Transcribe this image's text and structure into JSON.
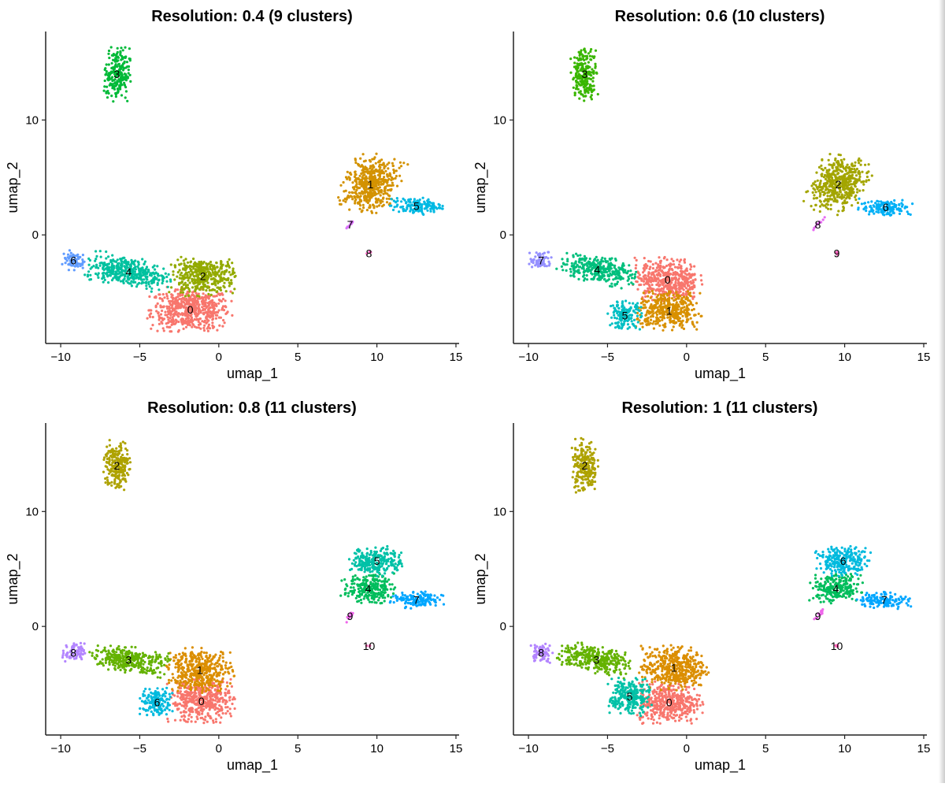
{
  "chart_data": [
    {
      "type": "scatter",
      "title": "Resolution: 0.4 (9 clusters)",
      "xlabel": "umap_1",
      "ylabel": "umap_2",
      "xlim": [
        -10.95,
        15.2
      ],
      "ylim": [
        -9.45,
        17.7
      ],
      "xticks": [
        -10,
        -5,
        0,
        5,
        10,
        15
      ],
      "yticks": [
        0,
        10
      ],
      "grid": false,
      "legend": "none",
      "clusters": [
        {
          "id": "0",
          "color": "#F8766D",
          "cx": -1.8,
          "cy": -6.5,
          "sx": 1.25,
          "sy": 0.9,
          "angle": 0
        },
        {
          "id": "1",
          "color": "#D39200",
          "cx": 9.6,
          "cy": 4.4,
          "sx": 0.8,
          "sy": 1.2,
          "angle": -20
        },
        {
          "id": "2",
          "color": "#93AA00",
          "cx": -1.0,
          "cy": -3.6,
          "sx": 1.0,
          "sy": 0.8,
          "angle": 0
        },
        {
          "id": "3",
          "color": "#00BA38",
          "cx": -6.45,
          "cy": 14.0,
          "sx": 0.4,
          "sy": 1.1,
          "angle": 0
        },
        {
          "id": "4",
          "color": "#00C19F",
          "cx": -5.7,
          "cy": -3.2,
          "sx": 1.3,
          "sy": 0.6,
          "angle": -15
        },
        {
          "id": "5",
          "color": "#00B9E3",
          "cx": 12.5,
          "cy": 2.5,
          "sx": 0.8,
          "sy": 0.35,
          "angle": 0
        },
        {
          "id": "6",
          "color": "#619CFF",
          "cx": -9.2,
          "cy": -2.2,
          "sx": 0.35,
          "sy": 0.4,
          "angle": 0
        },
        {
          "id": "7",
          "color": "#DB72FB",
          "cx": 8.3,
          "cy": 0.9,
          "sx": 0.35,
          "sy": 0.06,
          "angle": 60
        },
        {
          "id": "8",
          "color": "#FF61C3",
          "cx": 9.5,
          "cy": -1.6,
          "sx": 0.08,
          "sy": 0.08,
          "angle": 0
        }
      ]
    },
    {
      "type": "scatter",
      "title": "Resolution: 0.6 (10 clusters)",
      "xlabel": "umap_1",
      "ylabel": "umap_2",
      "xlim": [
        -10.95,
        15.2
      ],
      "ylim": [
        -9.45,
        17.7
      ],
      "xticks": [
        -10,
        -5,
        0,
        5,
        10,
        15
      ],
      "yticks": [
        0,
        10
      ],
      "grid": false,
      "legend": "none",
      "clusters": [
        {
          "id": "0",
          "color": "#F8766D",
          "cx": -1.2,
          "cy": -3.9,
          "sx": 1.0,
          "sy": 0.9,
          "angle": 0
        },
        {
          "id": "1",
          "color": "#D89000",
          "cx": -1.1,
          "cy": -6.6,
          "sx": 1.0,
          "sy": 0.8,
          "angle": 0
        },
        {
          "id": "2",
          "color": "#A3A500",
          "cx": 9.6,
          "cy": 4.4,
          "sx": 0.8,
          "sy": 1.2,
          "angle": -20
        },
        {
          "id": "3",
          "color": "#39B600",
          "cx": -6.45,
          "cy": 14.0,
          "sx": 0.4,
          "sy": 1.1,
          "angle": 0
        },
        {
          "id": "4",
          "color": "#00BF7D",
          "cx": -5.65,
          "cy": -3.0,
          "sx": 1.2,
          "sy": 0.55,
          "angle": -15
        },
        {
          "id": "5",
          "color": "#00BFC4",
          "cx": -3.9,
          "cy": -7.0,
          "sx": 0.5,
          "sy": 0.6,
          "angle": 0
        },
        {
          "id": "6",
          "color": "#00B0F6",
          "cx": 12.6,
          "cy": 2.4,
          "sx": 0.8,
          "sy": 0.35,
          "angle": 0
        },
        {
          "id": "7",
          "color": "#9590FF",
          "cx": -9.2,
          "cy": -2.2,
          "sx": 0.35,
          "sy": 0.4,
          "angle": 0
        },
        {
          "id": "8",
          "color": "#E76BF3",
          "cx": 8.3,
          "cy": 0.9,
          "sx": 0.35,
          "sy": 0.06,
          "angle": 60
        },
        {
          "id": "9",
          "color": "#FF62BC",
          "cx": 9.5,
          "cy": -1.6,
          "sx": 0.08,
          "sy": 0.08,
          "angle": 0
        }
      ]
    },
    {
      "type": "scatter",
      "title": "Resolution: 0.8 (11 clusters)",
      "xlabel": "umap_1",
      "ylabel": "umap_2",
      "xlim": [
        -10.95,
        15.2
      ],
      "ylim": [
        -9.45,
        17.7
      ],
      "xticks": [
        -10,
        -5,
        0,
        5,
        10,
        15
      ],
      "yticks": [
        0,
        10
      ],
      "grid": false,
      "legend": "none",
      "clusters": [
        {
          "id": "0",
          "color": "#F8766D",
          "cx": -1.1,
          "cy": -6.5,
          "sx": 1.0,
          "sy": 0.9,
          "angle": 0
        },
        {
          "id": "1",
          "color": "#DB8E00",
          "cx": -1.2,
          "cy": -3.8,
          "sx": 1.0,
          "sy": 0.9,
          "angle": 0
        },
        {
          "id": "2",
          "color": "#AEA200",
          "cx": -6.45,
          "cy": 14.0,
          "sx": 0.4,
          "sy": 1.1,
          "angle": 0
        },
        {
          "id": "3",
          "color": "#64B200",
          "cx": -5.7,
          "cy": -2.9,
          "sx": 1.2,
          "sy": 0.55,
          "angle": -15
        },
        {
          "id": "4",
          "color": "#00BD5C",
          "cx": 9.45,
          "cy": 3.3,
          "sx": 0.8,
          "sy": 0.6,
          "angle": 0
        },
        {
          "id": "5",
          "color": "#00C1A7",
          "cx": 10.0,
          "cy": 5.7,
          "sx": 0.8,
          "sy": 0.6,
          "angle": 0
        },
        {
          "id": "6",
          "color": "#00BADE",
          "cx": -3.9,
          "cy": -6.6,
          "sx": 0.5,
          "sy": 0.6,
          "angle": 0
        },
        {
          "id": "7",
          "color": "#00A6FF",
          "cx": 12.5,
          "cy": 2.3,
          "sx": 0.8,
          "sy": 0.35,
          "angle": 0
        },
        {
          "id": "8",
          "color": "#B385FF",
          "cx": -9.2,
          "cy": -2.3,
          "sx": 0.35,
          "sy": 0.4,
          "angle": 0
        },
        {
          "id": "9",
          "color": "#EF67EB",
          "cx": 8.3,
          "cy": 0.9,
          "sx": 0.35,
          "sy": 0.06,
          "angle": 60
        },
        {
          "id": "10",
          "color": "#FF63B6",
          "cx": 9.5,
          "cy": -1.7,
          "sx": 0.08,
          "sy": 0.08,
          "angle": 0
        }
      ]
    },
    {
      "type": "scatter",
      "title": "Resolution: 1 (11 clusters)",
      "xlabel": "umap_1",
      "ylabel": "umap_2",
      "xlim": [
        -10.95,
        15.2
      ],
      "ylim": [
        -9.45,
        17.7
      ],
      "xticks": [
        -10,
        -5,
        0,
        5,
        10,
        15
      ],
      "yticks": [
        0,
        10
      ],
      "grid": false,
      "legend": "none",
      "clusters": [
        {
          "id": "0",
          "color": "#F8766D",
          "cx": -1.1,
          "cy": -6.6,
          "sx": 1.0,
          "sy": 0.85,
          "angle": 0
        },
        {
          "id": "1",
          "color": "#DB8E00",
          "cx": -0.8,
          "cy": -3.6,
          "sx": 1.0,
          "sy": 0.9,
          "angle": 0
        },
        {
          "id": "2",
          "color": "#AEA200",
          "cx": -6.45,
          "cy": 14.0,
          "sx": 0.4,
          "sy": 1.1,
          "angle": 0
        },
        {
          "id": "3",
          "color": "#64B200",
          "cx": -5.7,
          "cy": -2.9,
          "sx": 1.2,
          "sy": 0.55,
          "angle": -15
        },
        {
          "id": "4",
          "color": "#00BD5C",
          "cx": 9.45,
          "cy": 3.3,
          "sx": 0.8,
          "sy": 0.6,
          "angle": 0
        },
        {
          "id": "5",
          "color": "#00C1A7",
          "cx": -3.6,
          "cy": -6.1,
          "sx": 0.65,
          "sy": 0.8,
          "angle": 0
        },
        {
          "id": "6",
          "color": "#00BADE",
          "cx": 9.9,
          "cy": 5.7,
          "sx": 0.8,
          "sy": 0.6,
          "angle": 0
        },
        {
          "id": "7",
          "color": "#00A6FF",
          "cx": 12.5,
          "cy": 2.3,
          "sx": 0.8,
          "sy": 0.35,
          "angle": 0
        },
        {
          "id": "8",
          "color": "#B385FF",
          "cx": -9.2,
          "cy": -2.3,
          "sx": 0.35,
          "sy": 0.4,
          "angle": 0
        },
        {
          "id": "9",
          "color": "#EF67EB",
          "cx": 8.3,
          "cy": 0.9,
          "sx": 0.35,
          "sy": 0.06,
          "angle": 60
        },
        {
          "id": "10",
          "color": "#FF63B6",
          "cx": 9.5,
          "cy": -1.7,
          "sx": 0.08,
          "sy": 0.08,
          "angle": 0
        }
      ]
    }
  ]
}
